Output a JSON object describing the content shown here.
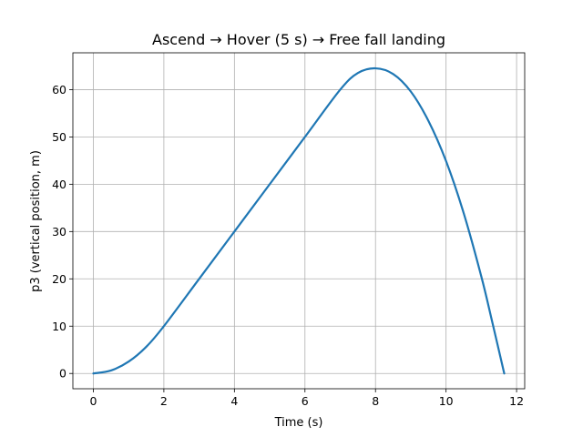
{
  "chart_data": {
    "type": "line",
    "title": "Ascend → Hover (5 s) → Free fall landing",
    "xlabel": "Time (s)",
    "ylabel": "p3 (vertical position, m)",
    "xlim": [
      -0.58,
      12.23
    ],
    "ylim": [
      -3.23,
      67.78
    ],
    "xticks": [
      0,
      2,
      4,
      6,
      8,
      10,
      12
    ],
    "yticks": [
      0,
      10,
      20,
      30,
      40,
      50,
      60
    ],
    "grid": true,
    "colors": {
      "line": "#1f77b4",
      "grid": "#b0b0b0"
    },
    "series": [
      {
        "x": [
          0,
          0.5,
          1,
          1.5,
          2,
          3,
          4,
          5,
          6,
          7,
          7.5,
          8,
          8.5,
          9,
          9.5,
          10,
          10.5,
          11,
          11.3,
          11.65
        ],
        "y": [
          0,
          0.63,
          2.5,
          5.63,
          10,
          20,
          30,
          40,
          50,
          60,
          63.5,
          64.5,
          63.3,
          59.6,
          53.4,
          44.9,
          33.9,
          20.5,
          11.2,
          0
        ]
      }
    ]
  }
}
